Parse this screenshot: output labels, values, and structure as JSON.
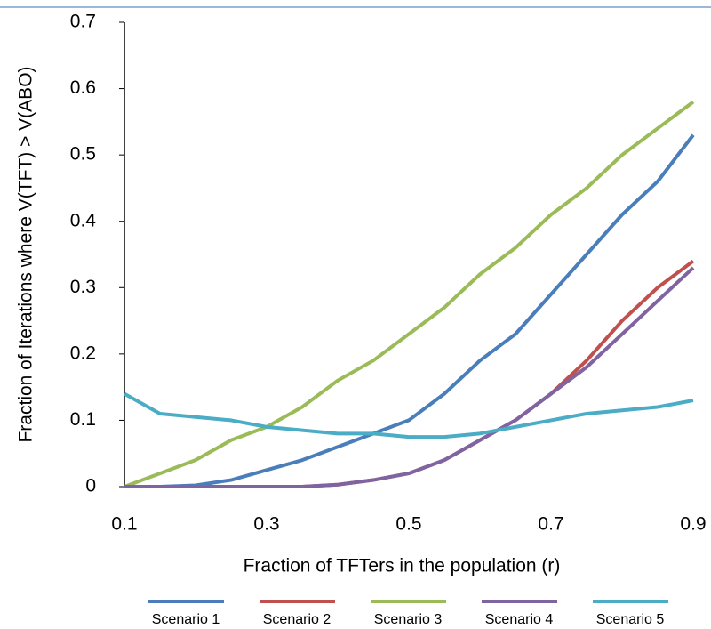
{
  "chart_data": {
    "type": "line",
    "y_label": "Fraction of Iterations where V(TFT) > V(ABO)",
    "x_label": "Fraction of TFTers in the population (r)",
    "x": [
      0.1,
      0.15,
      0.2,
      0.25,
      0.3,
      0.35,
      0.4,
      0.45,
      0.5,
      0.55,
      0.6,
      0.65,
      0.7,
      0.75,
      0.8,
      0.85,
      0.9
    ],
    "series": [
      {
        "name": "Scenario 1",
        "color": "#4a7ebb",
        "values": [
          0,
          0,
          0.002,
          0.01,
          0.025,
          0.04,
          0.06,
          0.08,
          0.1,
          0.14,
          0.19,
          0.23,
          0.29,
          0.35,
          0.41,
          0.46,
          0.53
        ]
      },
      {
        "name": "Scenario 2",
        "color": "#c0504d",
        "values": [
          0,
          0,
          0,
          0,
          0,
          0,
          0.003,
          0.01,
          0.02,
          0.04,
          0.07,
          0.1,
          0.14,
          0.19,
          0.25,
          0.3,
          0.34
        ]
      },
      {
        "name": "Scenario 3",
        "color": "#9bbb59",
        "values": [
          0,
          0.02,
          0.04,
          0.07,
          0.09,
          0.12,
          0.16,
          0.19,
          0.23,
          0.27,
          0.32,
          0.36,
          0.41,
          0.45,
          0.5,
          0.54,
          0.58
        ]
      },
      {
        "name": "Scenario 4",
        "color": "#8064a2",
        "values": [
          0,
          0,
          0,
          0,
          0,
          0,
          0.003,
          0.01,
          0.02,
          0.04,
          0.07,
          0.1,
          0.14,
          0.18,
          0.23,
          0.28,
          0.33
        ]
      },
      {
        "name": "Scenario 5",
        "color": "#4bacc6",
        "values": [
          0.14,
          0.11,
          0.105,
          0.1,
          0.09,
          0.085,
          0.08,
          0.08,
          0.075,
          0.075,
          0.08,
          0.09,
          0.1,
          0.11,
          0.115,
          0.12,
          0.13
        ]
      }
    ],
    "xlim": [
      0.1,
      0.9
    ],
    "xticks": [
      0.1,
      0.3,
      0.5,
      0.7,
      0.9
    ],
    "ylim": [
      0,
      0.7
    ],
    "yticks": [
      0,
      0.1,
      0.2,
      0.3,
      0.4,
      0.5,
      0.6,
      0.7
    ],
    "grid": false
  }
}
